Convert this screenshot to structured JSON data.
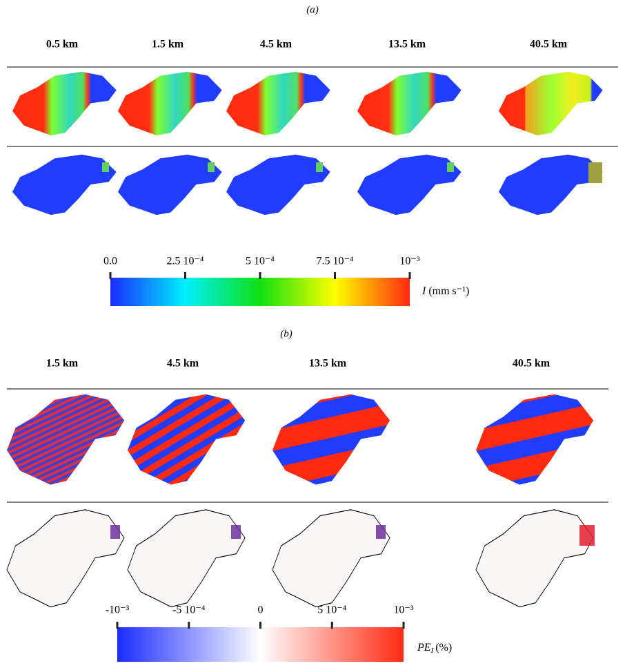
{
  "panel_a": {
    "label": "(a)",
    "columns": [
      "0.5 km",
      "1.5 km",
      "4.5 km",
      "13.5 km",
      "40.5 km"
    ],
    "colorbar": {
      "ticks": [
        "0.0",
        "2.5 10⁻⁴",
        "5 10⁻⁴",
        "7.5 10⁻⁴",
        "10⁻³"
      ],
      "symbol": "I",
      "unit": "(mm s⁻¹)"
    }
  },
  "panel_b": {
    "label": "(b)",
    "columns": [
      "1.5 km",
      "4.5 km",
      "13.5 km",
      "40.5 km"
    ],
    "colorbar": {
      "ticks": [
        "-10⁻³",
        "-5 10⁻⁴",
        "0",
        "5 10⁻⁴",
        "10⁻³"
      ],
      "symbol": "PE",
      "subscript": "I",
      "unit": "(%)"
    }
  }
}
